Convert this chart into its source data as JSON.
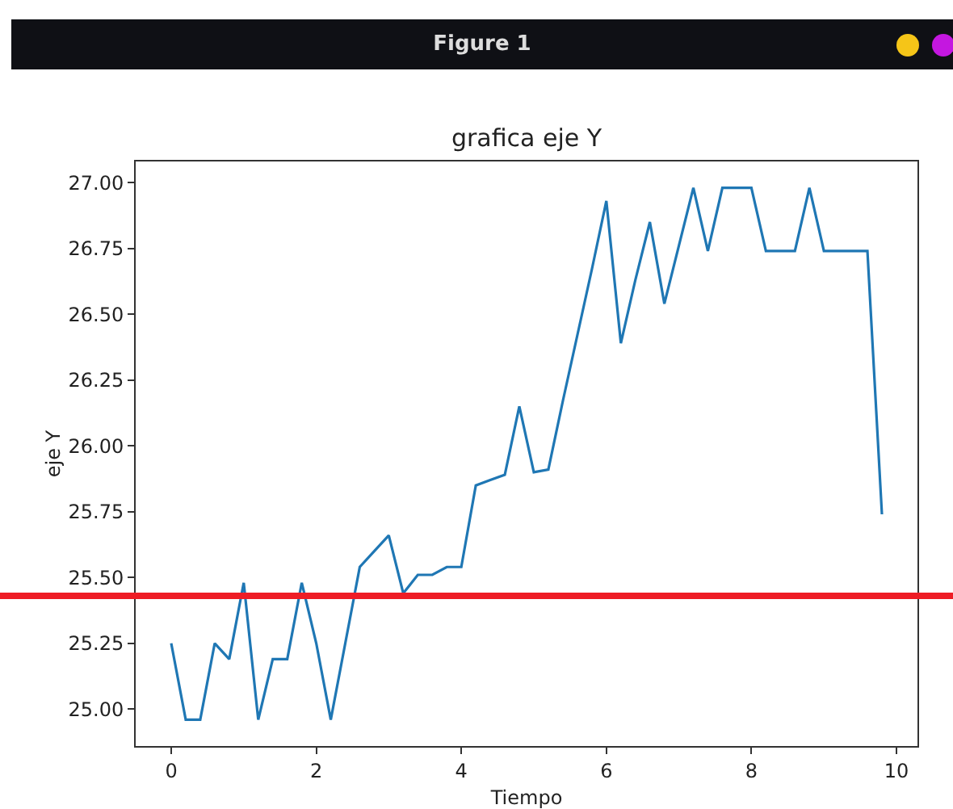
{
  "chart_data": {
    "type": "line",
    "title": "grafica eje Y",
    "xlabel": "Tiempo",
    "ylabel": "eje Y",
    "annotations": [
      "Figure 1"
    ],
    "x": [
      0,
      0.2,
      0.4,
      0.6,
      0.8,
      1.0,
      1.2,
      1.4,
      1.6,
      1.8,
      2.0,
      2.2,
      2.4,
      2.6,
      2.8,
      3.0,
      3.2,
      3.4,
      3.6,
      3.8,
      4.0,
      4.2,
      4.4,
      4.6,
      4.8,
      5.0,
      5.2,
      5.4,
      5.6,
      5.8,
      6.0,
      6.2,
      6.4,
      6.6,
      6.8,
      7.0,
      7.2,
      7.4,
      7.6,
      7.8,
      8.0,
      8.2,
      8.4,
      8.6,
      8.8,
      9.0,
      9.2,
      9.4,
      9.6,
      9.8
    ],
    "series": [
      {
        "color": "#1f77b4",
        "values": [
          25.25,
          24.96,
          24.96,
          25.25,
          25.19,
          25.48,
          24.96,
          25.19,
          25.19,
          25.48,
          25.25,
          24.96,
          25.25,
          25.54,
          25.6,
          25.66,
          25.44,
          25.51,
          25.51,
          25.54,
          25.54,
          25.85,
          25.87,
          25.89,
          26.15,
          25.9,
          25.91,
          26.17,
          26.42,
          26.67,
          26.93,
          26.39,
          26.63,
          26.85,
          26.54,
          26.76,
          26.98,
          26.74,
          26.98,
          26.98,
          26.98,
          26.74,
          26.74,
          26.74,
          26.98,
          26.74,
          26.74,
          26.74,
          26.74,
          25.74
        ]
      }
    ],
    "xlim": [
      -0.49,
      10.29
    ],
    "ylim": [
      24.86,
      27.08
    ],
    "xticks": [
      0,
      2,
      4,
      6,
      8,
      10
    ],
    "yticks": [
      {
        "value": 25,
        "label": "25.00"
      },
      25.25,
      {
        "value": 25.5,
        "label": "25.50"
      },
      25.75,
      {
        "value": 26,
        "label": "26.00"
      },
      26.25,
      {
        "value": 26.5,
        "label": "26.50"
      },
      26.75,
      {
        "value": 27,
        "label": "27.00"
      }
    ],
    "ref_lines": [
      {
        "axis": "y",
        "value": 25.43,
        "color": "#ee1c25"
      }
    ],
    "grid": false,
    "marker": "none",
    "line_style": "solid"
  }
}
